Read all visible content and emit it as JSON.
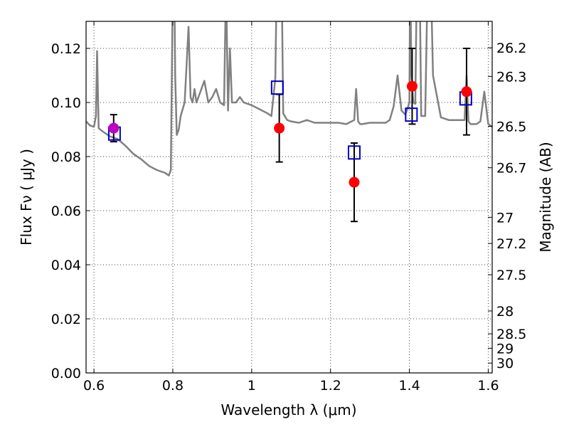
{
  "chart_data": {
    "type": "scatter",
    "xlabel": "Wavelength  λ (μm)",
    "ylabel": "Flux  Fν (  μJy )",
    "y2label": "Magnitude (AB)",
    "xlim": [
      0.58,
      1.61
    ],
    "ylim": [
      0.0,
      0.13
    ],
    "grid": true,
    "x_ticks": [
      0.6,
      0.8,
      1.0,
      1.2,
      1.4,
      1.6
    ],
    "x_tick_labels": [
      "0.6",
      "0.8",
      "1",
      "1.2",
      "1.4",
      "1.6"
    ],
    "y_ticks": [
      0.0,
      0.02,
      0.04,
      0.06,
      0.08,
      0.1,
      0.12
    ],
    "y_tick_labels": [
      "0.00",
      "0.02",
      "0.04",
      "0.06",
      "0.08",
      "0.10",
      "0.12"
    ],
    "mag_ticks": [
      26.2,
      26.3,
      26.5,
      26.7,
      27,
      27.2,
      27.5,
      28,
      28.5,
      29,
      30
    ],
    "mag_tick_labels": [
      "26.2",
      "26.3",
      "26.5",
      "26.7",
      "27",
      "27.2",
      "27.5",
      "28",
      "28.5",
      "29",
      "30"
    ],
    "colors": {
      "model": "#808080",
      "observed": "#ff0000",
      "observed_first": "#bf00bf",
      "model_band": "#0000cc",
      "errorbar": "#000000",
      "grid": "#444444"
    },
    "series": [
      {
        "kind": "line",
        "x": [
          0.58,
          0.59,
          0.6,
          0.605,
          0.608,
          0.612,
          0.62,
          0.64,
          0.66,
          0.68,
          0.7,
          0.72,
          0.74,
          0.76,
          0.78,
          0.79,
          0.795,
          0.8,
          0.803,
          0.806,
          0.81,
          0.815,
          0.82,
          0.83,
          0.84,
          0.845,
          0.85,
          0.855,
          0.86,
          0.87,
          0.88,
          0.89,
          0.9,
          0.91,
          0.92,
          0.93,
          0.935,
          0.94,
          0.945,
          0.95,
          0.96,
          0.97,
          0.98,
          1.0,
          1.02,
          1.04,
          1.05,
          1.06,
          1.065,
          1.07,
          1.075,
          1.08,
          1.09,
          1.1,
          1.12,
          1.14,
          1.16,
          1.18,
          1.2,
          1.22,
          1.24,
          1.26,
          1.265,
          1.27,
          1.275,
          1.28,
          1.3,
          1.32,
          1.34,
          1.35,
          1.36,
          1.37,
          1.38,
          1.39,
          1.4,
          1.402,
          1.405,
          1.41,
          1.415,
          1.42,
          1.425,
          1.43,
          1.44,
          1.45,
          1.46,
          1.48,
          1.5,
          1.52,
          1.54,
          1.545,
          1.55,
          1.555,
          1.56,
          1.57,
          1.58,
          1.59,
          1.6,
          1.61
        ],
        "y": [
          0.093,
          0.0915,
          0.091,
          0.095,
          0.119,
          0.0905,
          0.0895,
          0.0875,
          0.0865,
          0.084,
          0.081,
          0.079,
          0.0765,
          0.075,
          0.074,
          0.073,
          0.075,
          0.145,
          0.16,
          0.11,
          0.088,
          0.09,
          0.095,
          0.1,
          0.128,
          0.102,
          0.1,
          0.105,
          0.1,
          0.104,
          0.108,
          0.1,
          0.102,
          0.105,
          0.1,
          0.099,
          0.145,
          0.097,
          0.12,
          0.1,
          0.1,
          0.102,
          0.1,
          0.099,
          0.0975,
          0.096,
          0.095,
          0.109,
          0.16,
          0.13,
          0.16,
          0.096,
          0.0935,
          0.093,
          0.0925,
          0.0935,
          0.0925,
          0.0925,
          0.0925,
          0.0925,
          0.092,
          0.0935,
          0.105,
          0.093,
          0.092,
          0.092,
          0.0925,
          0.0925,
          0.0925,
          0.0935,
          0.0985,
          0.11,
          0.097,
          0.0955,
          0.1,
          0.15,
          0.11,
          0.1,
          0.0995,
          0.16,
          0.16,
          0.095,
          0.095,
          0.175,
          0.11,
          0.0945,
          0.0935,
          0.0935,
          0.0935,
          0.11,
          0.093,
          0.092,
          0.092,
          0.092,
          0.093,
          0.104,
          0.092,
          0.091
        ]
      },
      {
        "kind": "points",
        "x": [
          0.65,
          1.07,
          1.26,
          1.407,
          1.545
        ],
        "y": [
          0.0905,
          0.0905,
          0.0705,
          0.106,
          0.104
        ],
        "yerr": [
          0.005,
          0.0125,
          0.0145,
          0.014,
          0.016
        ]
      },
      {
        "kind": "squares",
        "x": [
          0.652,
          1.065,
          1.26,
          1.405,
          1.543
        ],
        "y": [
          0.0885,
          0.1055,
          0.0815,
          0.0955,
          0.1015
        ]
      }
    ]
  }
}
